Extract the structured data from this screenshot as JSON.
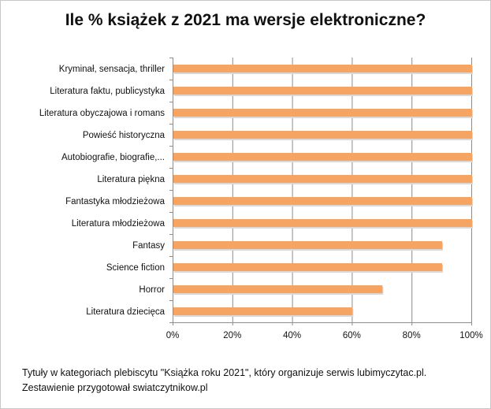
{
  "chart_data": {
    "type": "bar",
    "orientation": "horizontal",
    "title": "Ile % książek z 2021 ma wersje elektroniczne?",
    "categories": [
      "Kryminał, sensacja, thriller",
      "Literatura faktu, publicystyka",
      "Literatura obyczajowa i romans",
      "Powieść historyczna",
      "Autobiografie, biografie,...",
      "Literatura piękna",
      "Fantastyka młodzieżowa",
      "Literatura młodzieżowa",
      "Fantasy",
      "Science fiction",
      "Horror",
      "Literatura dziecięca"
    ],
    "values": [
      100,
      100,
      100,
      100,
      100,
      100,
      100,
      100,
      90,
      90,
      70,
      60
    ],
    "xlim": [
      0,
      100
    ],
    "x_ticks": [
      "0%",
      "20%",
      "40%",
      "60%",
      "80%",
      "100%"
    ],
    "x_tick_values": [
      0,
      20,
      40,
      60,
      80,
      100
    ],
    "grid": true,
    "bar_color": "#F5A462"
  },
  "footnote": {
    "line1": "Tytuły w kategoriach plebiscytu  \"Książka roku  2021\", który organizuje serwis  lubimyczytac.pl.",
    "line2": "Zestawienie przygotował swiatczytnikow.pl"
  }
}
